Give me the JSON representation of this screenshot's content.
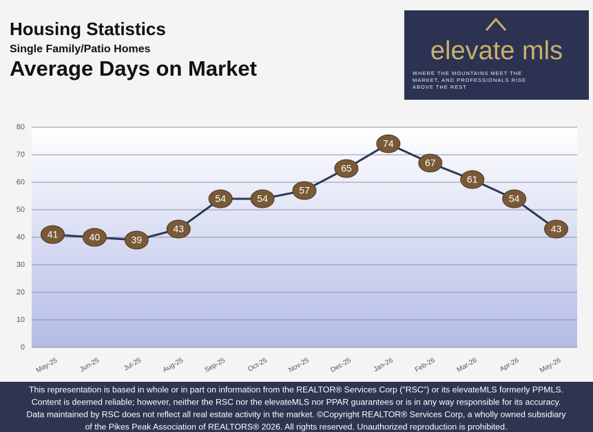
{
  "header": {
    "title": "Housing Statistics",
    "subtitle": "Single Family/Patio Homes"
  },
  "logo": {
    "name": "elevate mls",
    "tagline": [
      "WHERE THE MOUNTAINS MEET THE",
      "MARKET, AND PROFESSIONALS RISE",
      "ABOVE THE REST"
    ]
  },
  "chart_data": {
    "type": "line",
    "title": "Average Days on Market",
    "categories": [
      "May-25",
      "Jun-25",
      "Jul-25",
      "Aug-25",
      "Sep-25",
      "Oct-25",
      "Nov-25",
      "Dec-25",
      "Jan-26",
      "Feb-26",
      "Mar-26",
      "Apr-26",
      "May-26"
    ],
    "values": [
      41,
      40,
      39,
      43,
      54,
      54,
      57,
      65,
      74,
      67,
      61,
      54,
      43
    ],
    "color": "#2b3a55",
    "marker_color": "#7a5a36",
    "ylim": [
      0,
      80
    ],
    "yticks": [
      0,
      10,
      20,
      30,
      40,
      50,
      60,
      70,
      80
    ],
    "grid": true
  },
  "footer": {
    "lines": [
      "This representation is based in whole or in part on information from the REALTOR® Services Corp (\"RSC\") or its elevateMLS formerly PPMLS.",
      "Content is deemed reliable; however, neither the RSC nor the elevateMLS nor PPAR guarantees or is in any way responsible for its accuracy.",
      "Data maintained by RSC does not reflect all real estate activity in the market.  ©Copyright REALTOR® Services Corp, a wholly owned subsidiary",
      "of the Pikes Peak Association of REALTORS® 2026. All rights reserved.  Unauthorized reproduction is prohibited."
    ]
  }
}
